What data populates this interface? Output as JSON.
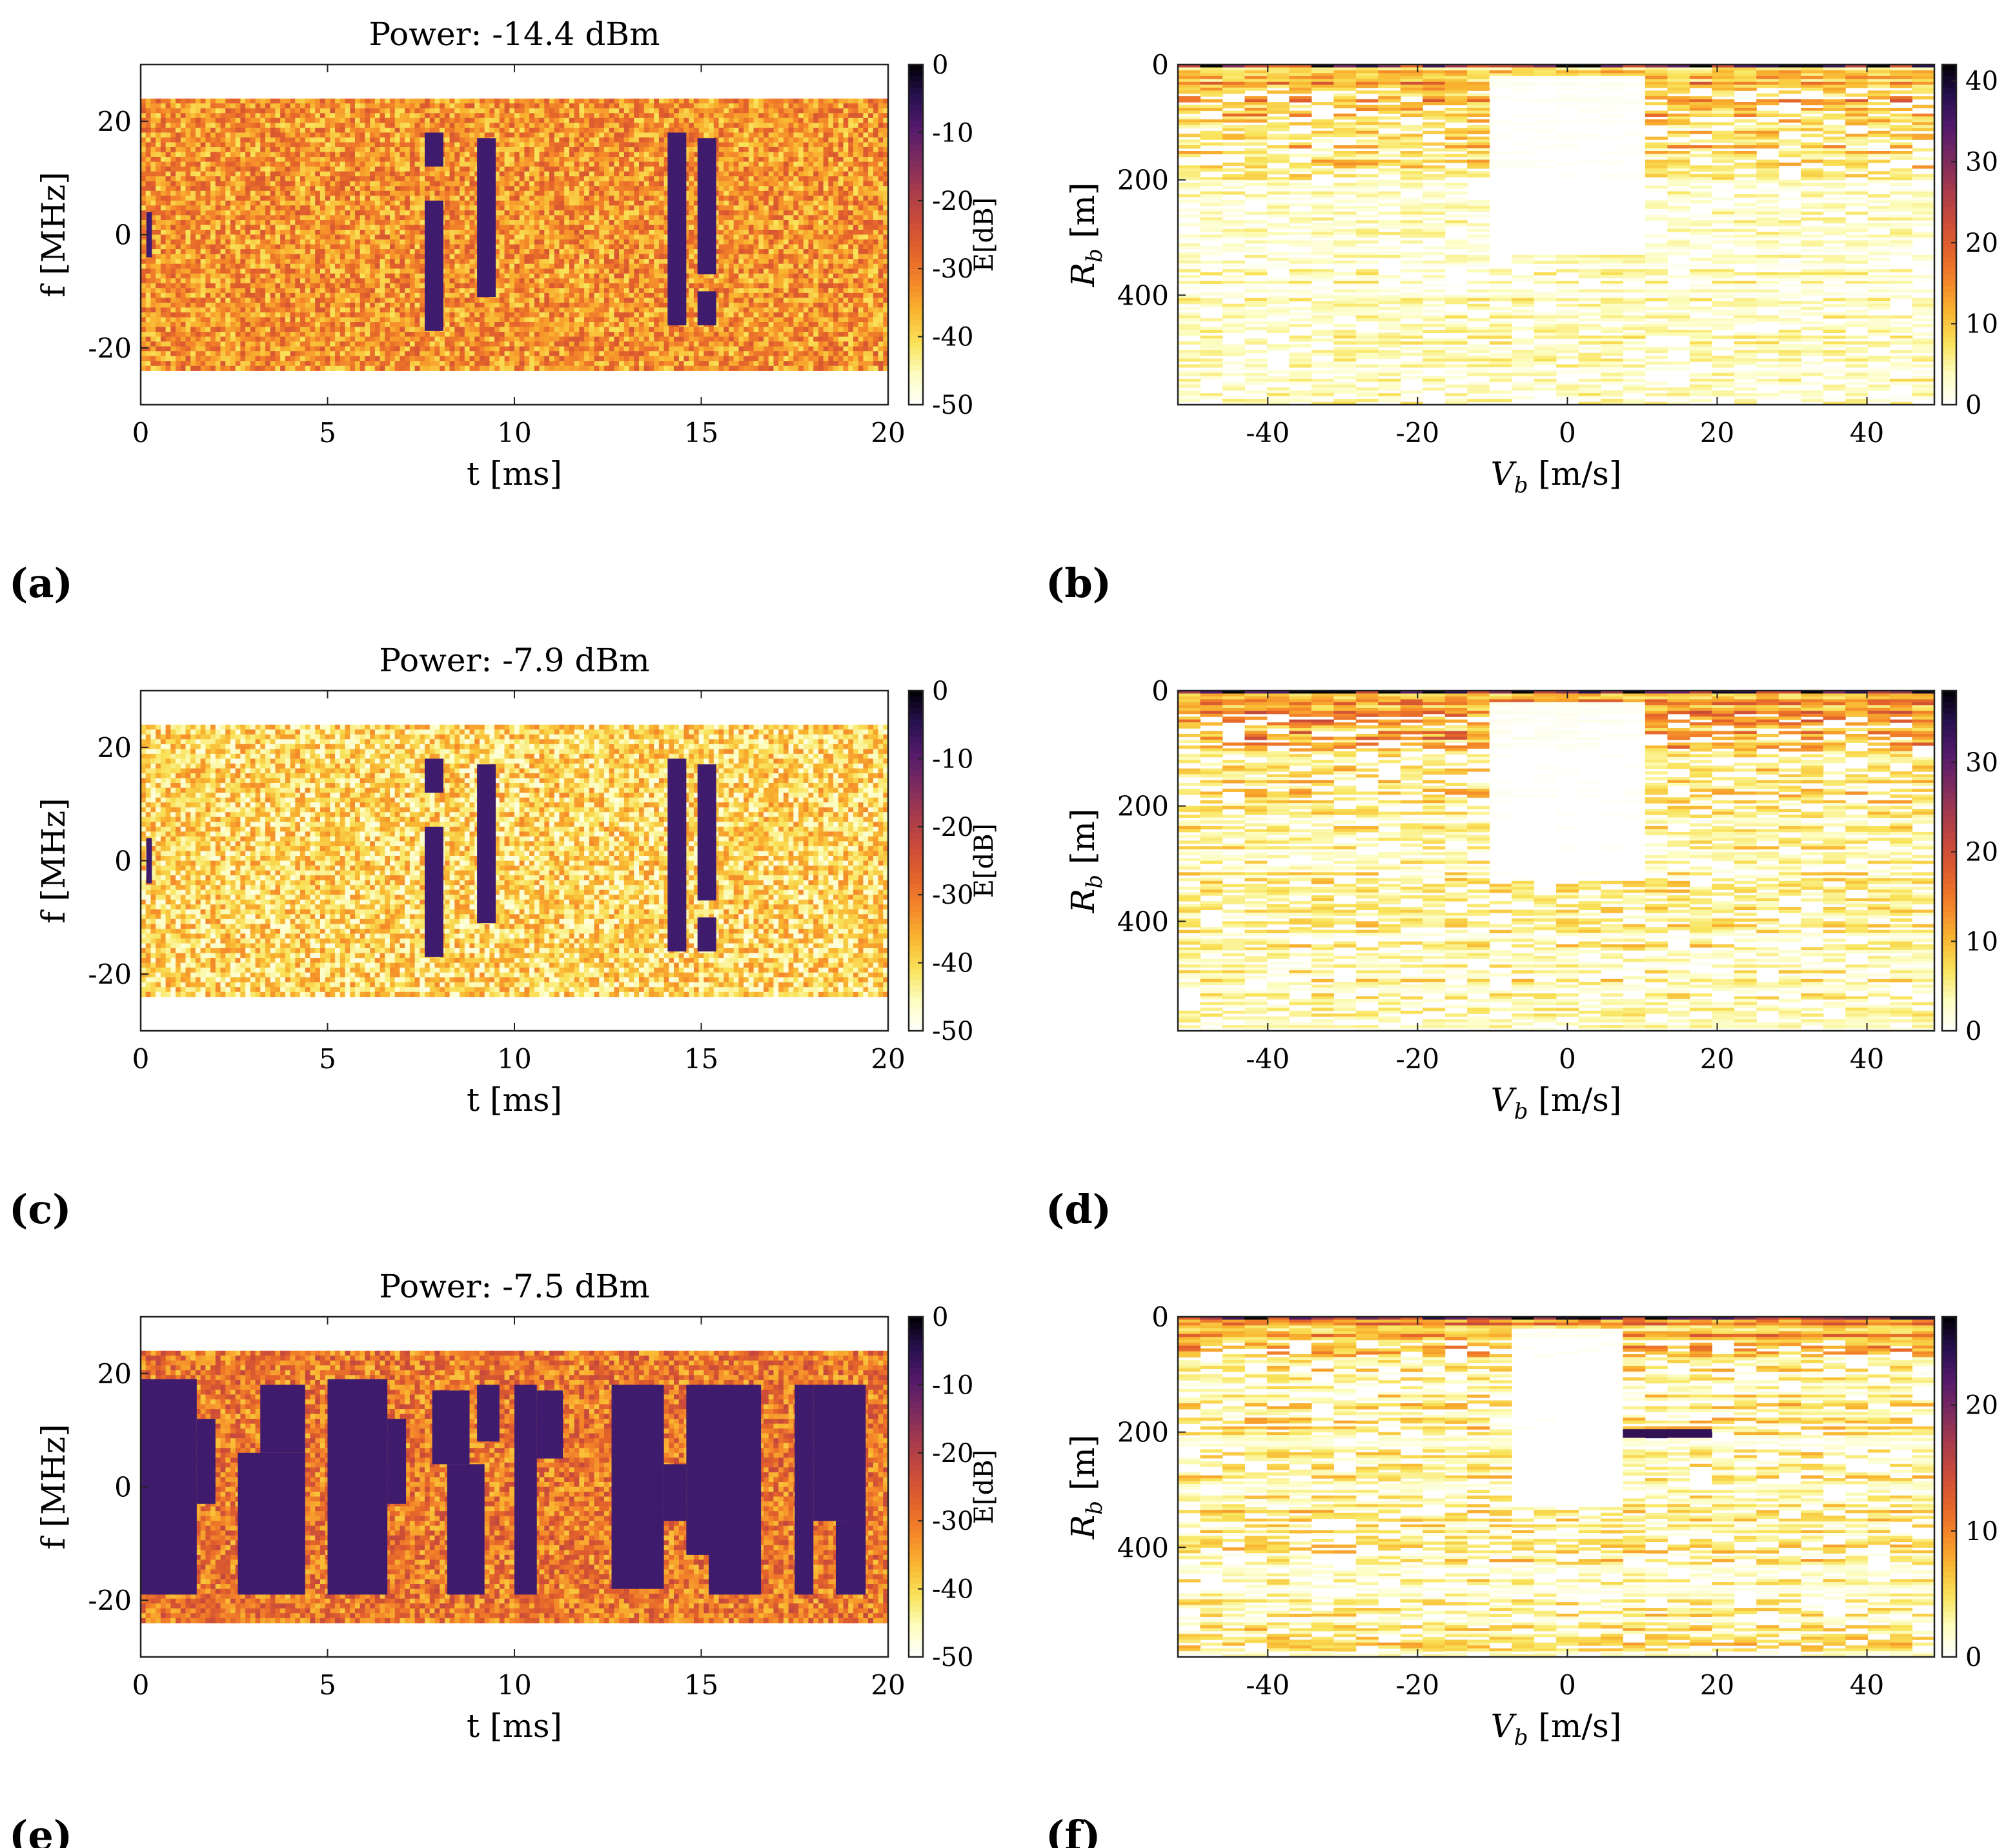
{
  "figure": {
    "colors": {
      "colormap": [
        "#ffffff",
        "#fcfdbf",
        "#f9e35a",
        "#f9b530",
        "#f4862a",
        "#e3622b",
        "#c94a3a",
        "#a63a4e",
        "#7a2a60",
        "#52196b",
        "#27104f",
        "#000004"
      ],
      "signal": "#3f1b6e",
      "frame": "#222222"
    }
  },
  "panels": [
    {
      "letter": "(a)",
      "type": "spectrogram",
      "title": "Power: -14.4 dBm"
    },
    {
      "letter": "(b)",
      "type": "range-velocity"
    },
    {
      "letter": "(c)",
      "type": "spectrogram",
      "title": "Power: -7.9 dBm"
    },
    {
      "letter": "(d)",
      "type": "range-velocity"
    },
    {
      "letter": "(e)",
      "type": "spectrogram",
      "title": "Power: -7.5 dBm"
    },
    {
      "letter": "(f)",
      "type": "range-velocity"
    }
  ],
  "chart_data": [
    {
      "panel": "(a)",
      "type": "heatmap",
      "title": "Power: -14.4 dBm",
      "xlabel": "t [ms]",
      "ylabel": "f [MHz]",
      "colorbar_label": "E[dB]",
      "xlim": [
        0,
        20
      ],
      "ylim": [
        -30,
        30
      ],
      "clim": [
        -50,
        0
      ],
      "xticks": [
        0,
        5,
        10,
        15,
        20
      ],
      "yticks": [
        20,
        0,
        -20
      ],
      "cbticks": [
        0,
        -10,
        -20,
        -30,
        -40,
        -50
      ],
      "occupied_band_mhz": [
        -23,
        23
      ],
      "noise_level_db": -33,
      "signal_blocks": [
        {
          "t": [
            0.15,
            0.3
          ],
          "f": [
            -4,
            4
          ]
        },
        {
          "t": [
            7.6,
            8.1
          ],
          "f": [
            12,
            18
          ]
        },
        {
          "t": [
            7.6,
            8.1
          ],
          "f": [
            -17,
            6
          ]
        },
        {
          "t": [
            9.0,
            9.5
          ],
          "f": [
            -11,
            17
          ]
        },
        {
          "t": [
            14.1,
            14.6
          ],
          "f": [
            -16,
            18
          ]
        },
        {
          "t": [
            14.9,
            15.4
          ],
          "f": [
            -7,
            17
          ]
        },
        {
          "t": [
            14.9,
            15.4
          ],
          "f": [
            -16,
            -10
          ]
        }
      ]
    },
    {
      "panel": "(b)",
      "type": "heatmap",
      "xlabel": "V_b [m/s]",
      "ylabel": "R_b [m]",
      "xlim": [
        -52,
        49
      ],
      "ylim": [
        0,
        590
      ],
      "clim": [
        0,
        42
      ],
      "xticks": [
        -40,
        -20,
        0,
        20,
        40
      ],
      "yticks": [
        0,
        200,
        400
      ],
      "cbticks": [
        40,
        30,
        20,
        10,
        0
      ],
      "profile": {
        "peak_row_value": 40,
        "band_end_m": 200,
        "band_value": 14,
        "tail_value": 4,
        "clear_center": [
          -10,
          10
        ]
      },
      "hotspots": []
    },
    {
      "panel": "(c)",
      "type": "heatmap",
      "title": "Power: -7.9 dBm",
      "xlabel": "t [ms]",
      "ylabel": "f [MHz]",
      "colorbar_label": "E[dB]",
      "xlim": [
        0,
        20
      ],
      "ylim": [
        -30,
        30
      ],
      "clim": [
        -50,
        0
      ],
      "xticks": [
        0,
        5,
        10,
        15,
        20
      ],
      "yticks": [
        20,
        0,
        -20
      ],
      "cbticks": [
        0,
        -10,
        -20,
        -30,
        -40,
        -50
      ],
      "occupied_band_mhz": [
        -23,
        23
      ],
      "noise_level_db": -40,
      "signal_blocks": [
        {
          "t": [
            0.15,
            0.3
          ],
          "f": [
            -4,
            4
          ]
        },
        {
          "t": [
            7.6,
            8.1
          ],
          "f": [
            12,
            18
          ]
        },
        {
          "t": [
            7.6,
            8.1
          ],
          "f": [
            -17,
            6
          ]
        },
        {
          "t": [
            9.0,
            9.5
          ],
          "f": [
            -11,
            17
          ]
        },
        {
          "t": [
            14.1,
            14.6
          ],
          "f": [
            -16,
            18
          ]
        },
        {
          "t": [
            14.9,
            15.4
          ],
          "f": [
            -7,
            17
          ]
        },
        {
          "t": [
            14.9,
            15.4
          ],
          "f": [
            -16,
            -10
          ]
        }
      ]
    },
    {
      "panel": "(d)",
      "type": "heatmap",
      "xlabel": "V_b [m/s]",
      "ylabel": "R_b [m]",
      "xlim": [
        -52,
        49
      ],
      "ylim": [
        0,
        590
      ],
      "clim": [
        0,
        38
      ],
      "xticks": [
        -40,
        -20,
        0,
        20,
        40
      ],
      "yticks": [
        0,
        200,
        400
      ],
      "cbticks": [
        30,
        20,
        10,
        0
      ],
      "profile": {
        "peak_row_value": 36,
        "band_end_m": 200,
        "band_value": 14,
        "tail_value": 5,
        "clear_center": [
          -10,
          10
        ]
      },
      "hotspots": []
    },
    {
      "panel": "(e)",
      "type": "heatmap",
      "title": "Power: -7.5 dBm",
      "xlabel": "t [ms]",
      "ylabel": "f [MHz]",
      "colorbar_label": "E[dB]",
      "xlim": [
        0,
        20
      ],
      "ylim": [
        -30,
        30
      ],
      "clim": [
        -50,
        0
      ],
      "xticks": [
        0,
        5,
        10,
        15,
        20
      ],
      "yticks": [
        20,
        0,
        -20
      ],
      "cbticks": [
        0,
        -10,
        -20,
        -30,
        -40,
        -50
      ],
      "occupied_band_mhz": [
        -23,
        23
      ],
      "noise_level_db": -30,
      "signal_blocks": [
        {
          "t": [
            0.0,
            1.5
          ],
          "f": [
            -19,
            19
          ]
        },
        {
          "t": [
            1.5,
            2.0
          ],
          "f": [
            -3,
            12
          ]
        },
        {
          "t": [
            2.6,
            4.4
          ],
          "f": [
            -19,
            6
          ]
        },
        {
          "t": [
            3.2,
            4.4
          ],
          "f": [
            6,
            18
          ]
        },
        {
          "t": [
            5.0,
            6.6
          ],
          "f": [
            -19,
            19
          ]
        },
        {
          "t": [
            6.6,
            7.1
          ],
          "f": [
            -3,
            12
          ]
        },
        {
          "t": [
            7.8,
            8.8
          ],
          "f": [
            4,
            17
          ]
        },
        {
          "t": [
            8.2,
            9.2
          ],
          "f": [
            -19,
            4
          ]
        },
        {
          "t": [
            9.0,
            9.6
          ],
          "f": [
            8,
            18
          ]
        },
        {
          "t": [
            10.0,
            10.6
          ],
          "f": [
            -19,
            18
          ]
        },
        {
          "t": [
            10.6,
            11.3
          ],
          "f": [
            5,
            17
          ]
        },
        {
          "t": [
            12.6,
            14.0
          ],
          "f": [
            -18,
            18
          ]
        },
        {
          "t": [
            14.0,
            14.6
          ],
          "f": [
            -6,
            4
          ]
        },
        {
          "t": [
            14.6,
            15.2
          ],
          "f": [
            -12,
            18
          ]
        },
        {
          "t": [
            15.2,
            16.6
          ],
          "f": [
            -19,
            18
          ]
        },
        {
          "t": [
            17.5,
            18.0
          ],
          "f": [
            -19,
            18
          ]
        },
        {
          "t": [
            18.0,
            19.4
          ],
          "f": [
            -6,
            18
          ]
        },
        {
          "t": [
            18.6,
            19.4
          ],
          "f": [
            -19,
            -6
          ]
        }
      ]
    },
    {
      "panel": "(f)",
      "type": "heatmap",
      "xlabel": "V_b [m/s]",
      "ylabel": "R_b [m]",
      "xlim": [
        -52,
        49
      ],
      "ylim": [
        0,
        590
      ],
      "clim": [
        0,
        27
      ],
      "xticks": [
        -40,
        -20,
        0,
        20,
        40
      ],
      "yticks": [
        0,
        200,
        400
      ],
      "cbticks": [
        20,
        10,
        0
      ],
      "profile": {
        "peak_row_value": 26,
        "band_end_m": 80,
        "band_value": 10,
        "tail_value": 4,
        "clear_center": [
          -6,
          6
        ]
      },
      "hotspots": [
        {
          "v": [
            8,
            18
          ],
          "r": [
            195,
            210
          ],
          "value": 24
        }
      ]
    }
  ]
}
